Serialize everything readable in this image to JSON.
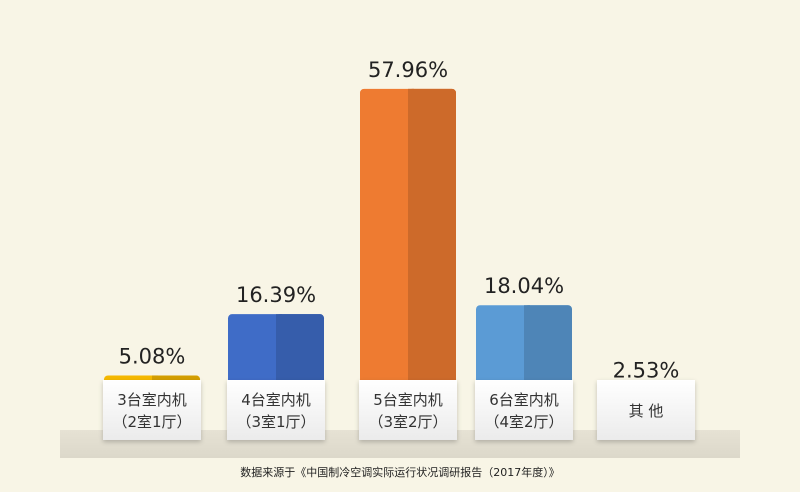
{
  "chart_data": {
    "type": "bar",
    "categories": [
      [
        "3台室内机",
        "（2室1厅）"
      ],
      [
        "4台室内机",
        "（3室1厅）"
      ],
      [
        "5台室内机",
        "（3室2厅）"
      ],
      [
        "6台室内机",
        "（4室2厅）"
      ],
      [
        "其 他"
      ]
    ],
    "values": [
      5.08,
      16.39,
      57.96,
      18.04,
      2.53
    ],
    "value_labels": [
      "5.08%",
      "16.39%",
      "57.96%",
      "18.04%",
      "2.53%"
    ],
    "colors": [
      "#f5b800",
      "#3f6cc7",
      "#ee7b31",
      "#5b9bd5",
      "#a5a5a5"
    ],
    "ylim": [
      0,
      60
    ],
    "grid": false,
    "source": "数据来源于《中国制冷空调实际运行状况调研报告（2017年度）》"
  }
}
